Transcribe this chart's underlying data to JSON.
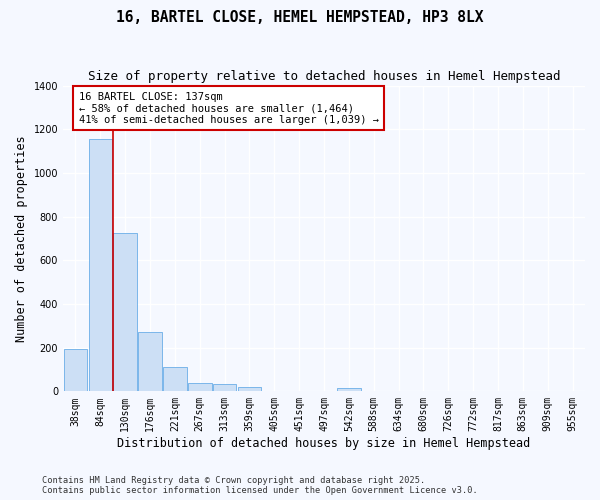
{
  "title": "16, BARTEL CLOSE, HEMEL HEMPSTEAD, HP3 8LX",
  "subtitle": "Size of property relative to detached houses in Hemel Hempstead",
  "xlabel": "Distribution of detached houses by size in Hemel Hempstead",
  "ylabel": "Number of detached properties",
  "footer_line1": "Contains HM Land Registry data © Crown copyright and database right 2025.",
  "footer_line2": "Contains public sector information licensed under the Open Government Licence v3.0.",
  "bins": [
    "38sqm",
    "84sqm",
    "130sqm",
    "176sqm",
    "221sqm",
    "267sqm",
    "313sqm",
    "359sqm",
    "405sqm",
    "451sqm",
    "497sqm",
    "542sqm",
    "588sqm",
    "634sqm",
    "680sqm",
    "726sqm",
    "772sqm",
    "817sqm",
    "863sqm",
    "909sqm",
    "955sqm"
  ],
  "values": [
    195,
    1155,
    725,
    270,
    113,
    37,
    32,
    18,
    0,
    0,
    0,
    15,
    0,
    0,
    0,
    0,
    0,
    0,
    0,
    0,
    0
  ],
  "bar_color": "#ccdff5",
  "bar_edge_color": "#6aaee8",
  "vline_x_index": 2,
  "vline_color": "#cc0000",
  "annotation_text": "16 BARTEL CLOSE: 137sqm\n← 58% of detached houses are smaller (1,464)\n41% of semi-detached houses are larger (1,039) →",
  "annotation_box_color": "#ffffff",
  "annotation_box_edge": "#cc0000",
  "ylim": [
    0,
    1400
  ],
  "yticks": [
    0,
    200,
    400,
    600,
    800,
    1000,
    1200,
    1400
  ],
  "bg_color": "#f5f8ff",
  "plot_bg_color": "#f5f8ff",
  "grid_color": "#ffffff",
  "title_fontsize": 10.5,
  "subtitle_fontsize": 9,
  "tick_fontsize": 7,
  "ylabel_fontsize": 8.5,
  "xlabel_fontsize": 8.5,
  "annotation_fontsize": 7.5
}
